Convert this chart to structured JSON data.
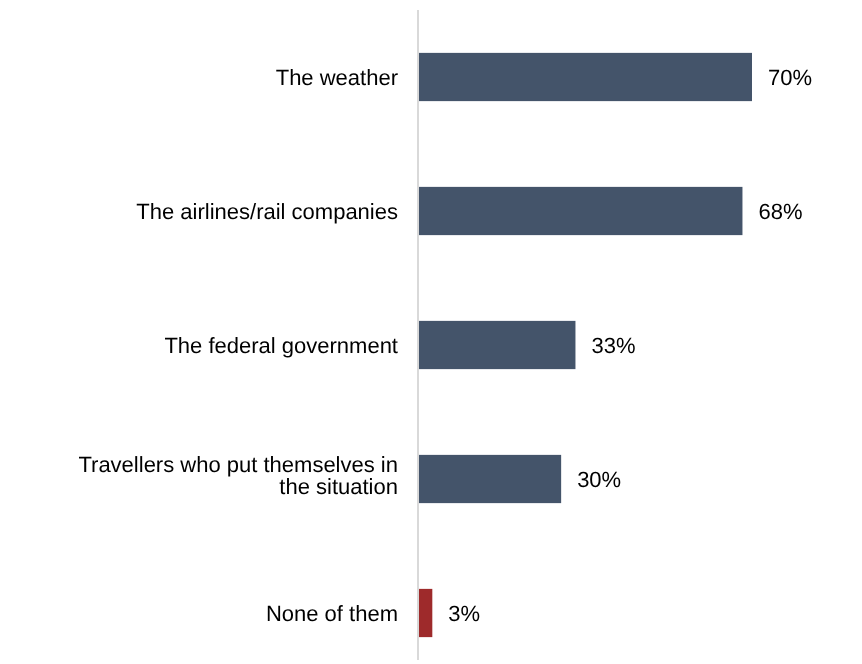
{
  "chart_data": {
    "type": "bar",
    "orientation": "horizontal",
    "categories": [
      "The weather",
      "The airlines/rail companies",
      "The federal government",
      "Travellers who put themselves in the situation",
      "None of them"
    ],
    "values": [
      70,
      68,
      33,
      30,
      3
    ],
    "colors": [
      "#44546a",
      "#44546a",
      "#44546a",
      "#44546a",
      "#9e2a2b"
    ],
    "value_labels": [
      "70%",
      "68%",
      "33%",
      "30%",
      "3%"
    ]
  }
}
